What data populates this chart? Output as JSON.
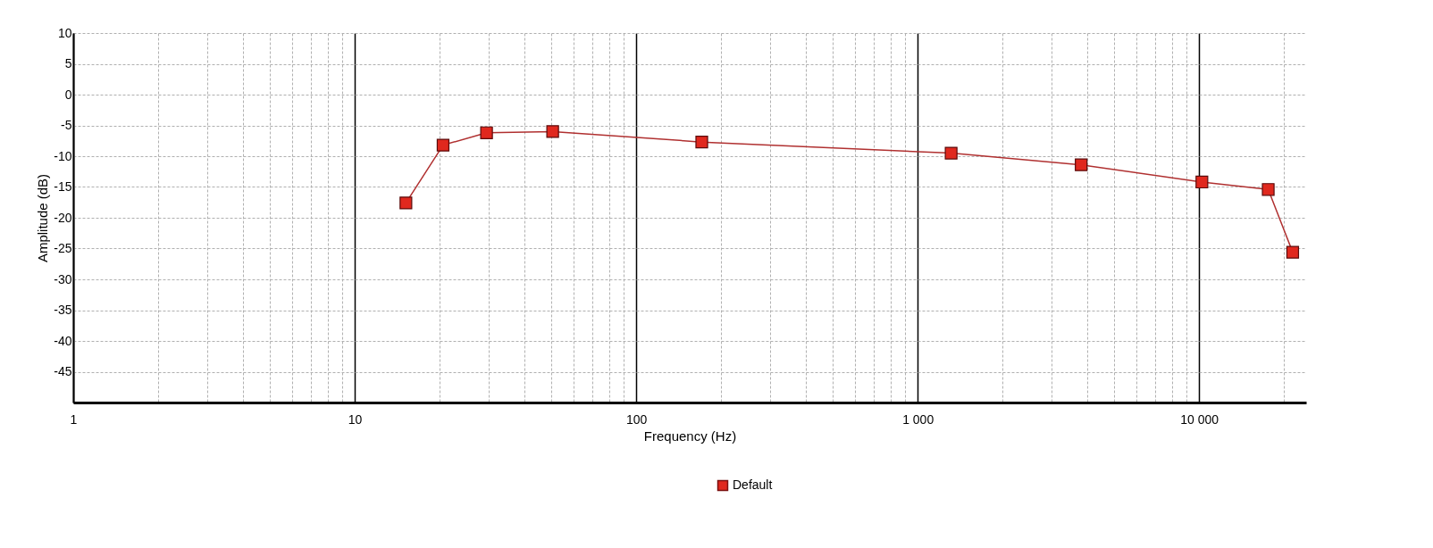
{
  "chart_data": {
    "type": "line",
    "xlabel": "Frequency (Hz)",
    "ylabel": "Amplitude (dB)",
    "log": "x",
    "x": [
      15.2,
      20.6,
      29.4,
      50.5,
      171,
      1315,
      3810,
      10230,
      17600,
      21500
    ],
    "series": [
      {
        "name": "Default",
        "color": "#e0281e",
        "values": [
          -17.6,
          -8.2,
          -6.2,
          -6.0,
          -7.7,
          -9.5,
          -11.4,
          -14.2,
          -15.4,
          -25.6
        ]
      }
    ],
    "xlim": [
      1,
      24000
    ],
    "xticks": [
      1,
      {
        "value": 2,
        "label": null
      },
      {
        "value": 3,
        "label": null
      },
      {
        "value": 4,
        "label": null
      },
      {
        "value": 5,
        "label": null
      },
      {
        "value": 6,
        "label": null
      },
      {
        "value": 7,
        "label": null
      },
      {
        "value": 8,
        "label": null
      },
      {
        "value": 9,
        "label": null
      },
      10,
      {
        "value": 20,
        "label": null
      },
      {
        "value": 30,
        "label": null
      },
      {
        "value": 40,
        "label": null
      },
      {
        "value": 50,
        "label": null
      },
      {
        "value": 60,
        "label": null
      },
      {
        "value": 70,
        "label": null
      },
      {
        "value": 80,
        "label": null
      },
      {
        "value": 90,
        "label": null
      },
      100,
      {
        "value": 200,
        "label": null
      },
      {
        "value": 300,
        "label": null
      },
      {
        "value": 400,
        "label": null
      },
      {
        "value": 500,
        "label": null
      },
      {
        "value": 600,
        "label": null
      },
      {
        "value": 700,
        "label": null
      },
      {
        "value": 800,
        "label": null
      },
      {
        "value": 900,
        "label": null
      },
      {
        "value": 1000,
        "label": "1 000"
      },
      {
        "value": 2000,
        "label": null
      },
      {
        "value": 3000,
        "label": null
      },
      {
        "value": 4000,
        "label": null
      },
      {
        "value": 5000,
        "label": null
      },
      {
        "value": 6000,
        "label": null
      },
      {
        "value": 7000,
        "label": null
      },
      {
        "value": 8000,
        "label": null
      },
      {
        "value": 9000,
        "label": null
      },
      {
        "value": 10000,
        "label": "10 000"
      },
      {
        "value": 20000,
        "label": null
      }
    ],
    "ylim": [
      -50,
      10
    ],
    "yticks": [
      10,
      5,
      0,
      -5,
      -10,
      -15,
      -20,
      -25,
      -30,
      -35,
      -40,
      -45
    ],
    "grid": true,
    "legend": "bottom",
    "marker": "square",
    "line_style": "solid"
  }
}
